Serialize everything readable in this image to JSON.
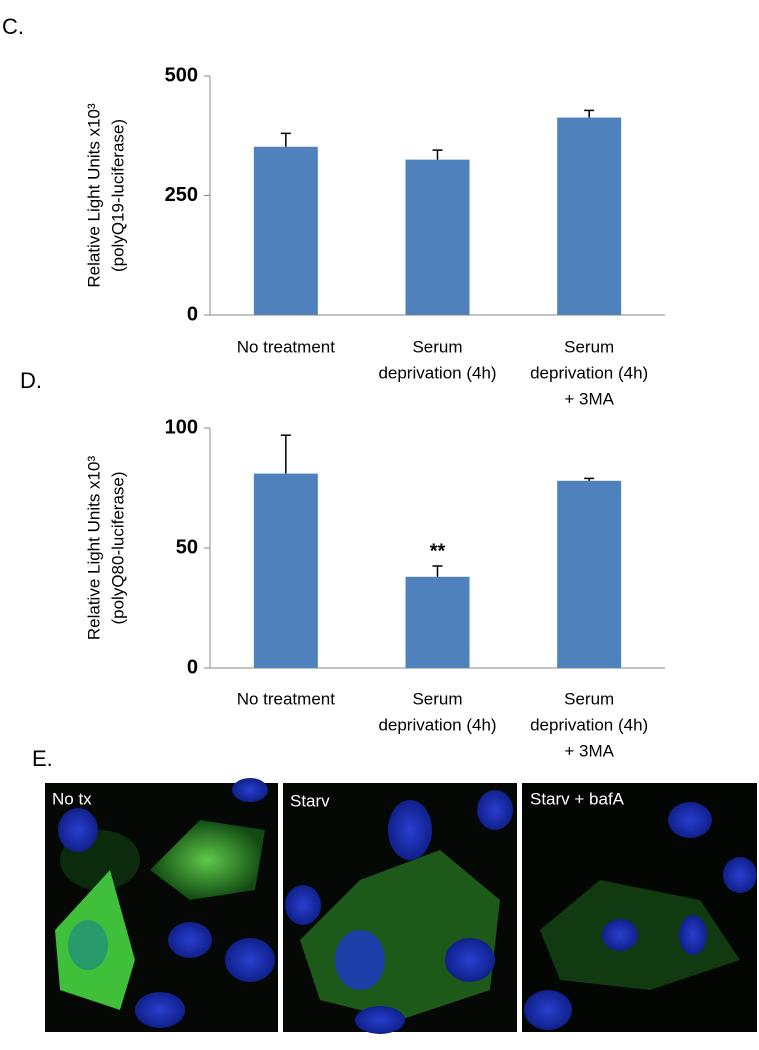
{
  "panel_labels": [
    "C.",
    "D.",
    "E."
  ],
  "chart_data": [
    {
      "type": "bar",
      "ylabel": [
        "Relative Light Units x10³",
        "(polyQ19-luciferase)"
      ],
      "categories": [
        [
          "No treatment"
        ],
        [
          "Serum",
          "deprivation (4h)"
        ],
        [
          "Serum",
          "deprivation (4h)",
          "+ 3MA"
        ]
      ],
      "values": [
        352,
        325,
        413
      ],
      "errors": [
        28,
        20,
        15
      ],
      "color": "#4f81bd",
      "ylim": [
        0,
        500
      ],
      "yticks": [
        0,
        250,
        500
      ]
    },
    {
      "type": "bar",
      "ylabel": [
        "Relative Light Units x10³",
        "(polyQ80-luciferase)"
      ],
      "categories": [
        [
          "No treatment"
        ],
        [
          "Serum",
          "deprivation (4h)"
        ],
        [
          "Serum",
          "deprivation (4h)",
          "+ 3MA"
        ]
      ],
      "values": [
        81,
        38,
        78
      ],
      "errors": [
        16,
        4.5,
        1
      ],
      "color": "#4f81bd",
      "ylim": [
        0,
        100
      ],
      "yticks": [
        0,
        50,
        100
      ],
      "annotations": [
        {
          "category": 1,
          "text": "**"
        }
      ]
    }
  ],
  "images": [
    {
      "label": "No tx"
    },
    {
      "label": "Starv"
    },
    {
      "label": "Starv + bafA"
    }
  ]
}
